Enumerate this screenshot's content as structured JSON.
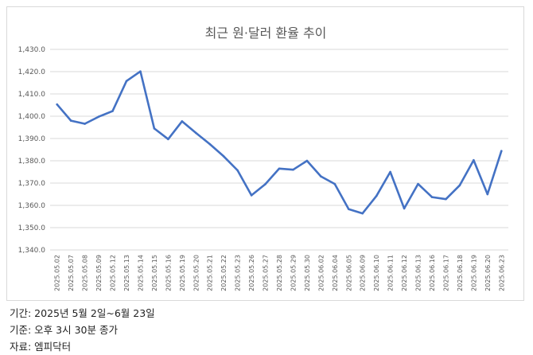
{
  "chart_data": {
    "type": "line",
    "title": "최근 원·달러 환율 추이",
    "xlabel": "",
    "ylabel": "",
    "ylim": [
      1340,
      1430
    ],
    "yticks": [
      1340,
      1350,
      1360,
      1370,
      1380,
      1390,
      1400,
      1410,
      1420,
      1430
    ],
    "ytick_labels": [
      "1,340.0",
      "1,350.0",
      "1,360.0",
      "1,370.0",
      "1,380.0",
      "1,390.0",
      "1,400.0",
      "1,410.0",
      "1,420.0",
      "1,430.0"
    ],
    "grid": true,
    "legend": "none",
    "color": "#4472c4",
    "x": [
      "2025.05.02",
      "2025.05.07",
      "2025.05.08",
      "2025.05.09",
      "2025.05.12",
      "2025.05.13",
      "2025.05.14",
      "2025.05.15",
      "2025.05.16",
      "2025.05.19",
      "2025.05.20",
      "2025.05.21",
      "2025.05.22",
      "2025.05.23",
      "2025.05.26",
      "2025.05.27",
      "2025.05.28",
      "2025.05.29",
      "2025.05.30",
      "2025.06.02",
      "2025.06.04",
      "2025.06.05",
      "2025.06.09",
      "2025.06.10",
      "2025.06.11",
      "2025.06.12",
      "2025.06.13",
      "2025.06.16",
      "2025.06.17",
      "2025.06.18",
      "2025.06.19",
      "2025.06.20",
      "2025.06.23"
    ],
    "series": [
      {
        "values": [
          1405.3,
          1398.0,
          1396.6,
          1399.8,
          1402.3,
          1415.8,
          1420.1,
          1394.5,
          1389.7,
          1397.7,
          1392.5,
          1387.5,
          1382.0,
          1375.7,
          1364.5,
          1369.5,
          1376.5,
          1376.0,
          1380.0,
          1373.0,
          1369.6,
          1358.3,
          1356.4,
          1364.2,
          1375.0,
          1358.6,
          1369.6,
          1363.7,
          1362.8,
          1369.0,
          1380.3,
          1365.0,
          1384.4
        ]
      }
    ]
  },
  "notes": {
    "period": "기간: 2025년 5월 2일~6월 23일",
    "basis": "기준: 오후 3시 30분 종가",
    "source": "자료: 엠피닥터"
  }
}
